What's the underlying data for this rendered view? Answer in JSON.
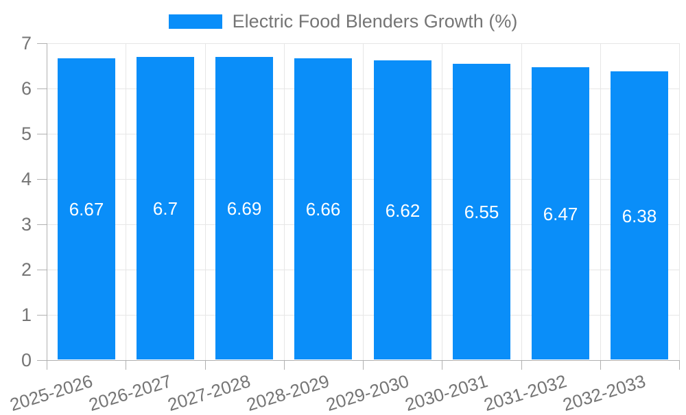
{
  "chart_data": {
    "type": "bar",
    "title": "Electric Food Blenders Growth (%)",
    "categories": [
      "2025-2026",
      "2026-2027",
      "2027-2028",
      "2028-2029",
      "2029-2030",
      "2030-2031",
      "2031-2032",
      "2032-2033"
    ],
    "values": [
      6.67,
      6.7,
      6.69,
      6.66,
      6.62,
      6.55,
      6.47,
      6.38
    ],
    "value_labels": [
      "6.67",
      "6.7",
      "6.69",
      "6.66",
      "6.62",
      "6.55",
      "6.47",
      "6.38"
    ],
    "xlabel": "",
    "ylabel": "",
    "ylim": [
      0,
      7
    ],
    "ytick_step": 1,
    "ytick_labels": [
      "0",
      "1",
      "2",
      "3",
      "4",
      "5",
      "6",
      "7"
    ],
    "grid": "on",
    "legend_position": "top-center",
    "colors": {
      "bar": "#0a8ef9",
      "bar_label_text": "#ffffff",
      "grid": "#e6e6e6",
      "axis": "#b0b0b0",
      "tick_text": "#757575",
      "legend_text": "#757575"
    }
  }
}
